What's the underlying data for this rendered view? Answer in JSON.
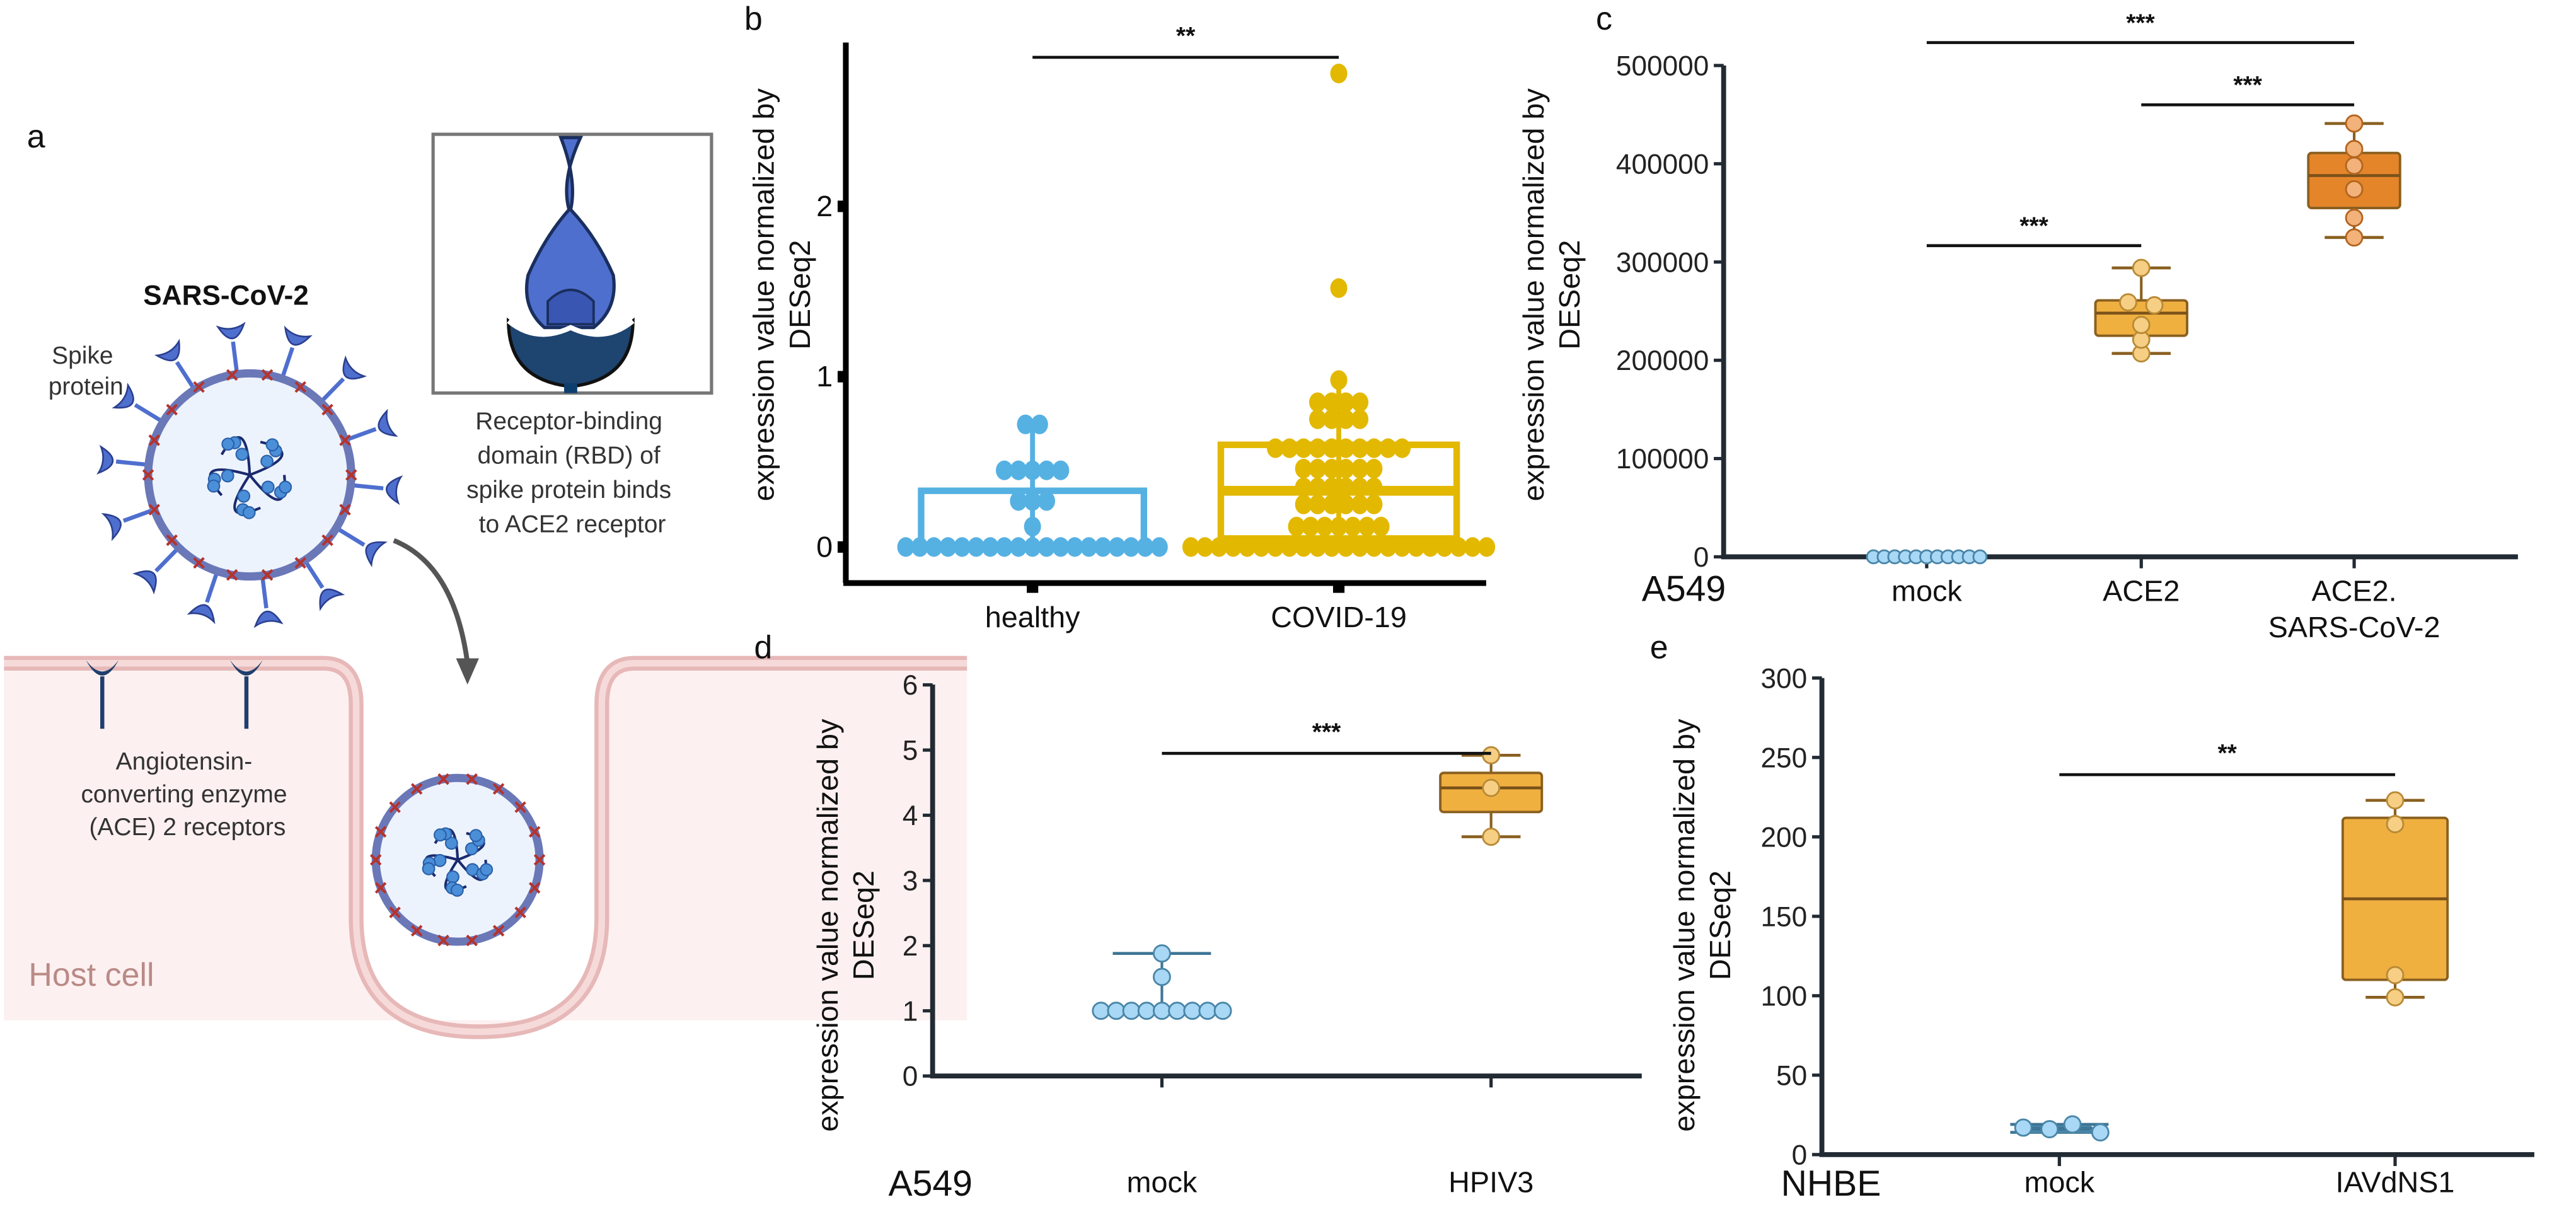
{
  "figure": {
    "panel_letters": [
      "a",
      "b",
      "c",
      "d",
      "e"
    ],
    "colors": {
      "healthy_blue": "#56b1e3",
      "covid_gold": "#e3b800",
      "mock_light_blue": "#a8d8f5",
      "mock_outline": "#4a86a8",
      "mock_dark_blue": "#3d7595",
      "ace2_orange": "#f0b040",
      "sars_orange": "#e5852a",
      "box_outline": "#8a6020",
      "point_fill": "#f6cf85",
      "axis_dark": "#222a33",
      "host_cell_fill": "#fdf0f0",
      "host_membrane": "#e7b8b8",
      "host_text": "#b98a86",
      "virus_blue": "#4f6fcf",
      "virus_dark": "#1e3f6e"
    }
  },
  "panel_a": {
    "letter": "a",
    "virus_title": "SARS-CoV-2",
    "spike_label": [
      "Spike",
      "protein"
    ],
    "rbd_caption": [
      "Receptor-binding",
      "domain (RBD) of",
      "spike protein binds",
      "to ACE2 receptor"
    ],
    "ace2_caption": [
      "Angiotensin-",
      "converting enzyme",
      "(ACE) 2 receptors"
    ],
    "host_cell_label": "Host cell"
  },
  "chart_data": [
    {
      "id": "b",
      "type": "box",
      "panel_letter": "b",
      "title": "",
      "xlabel": "",
      "ylabel": [
        "expression value normalized by",
        "DESeq2"
      ],
      "ylim": [
        -0.2,
        3.0
      ],
      "yticks": [
        0,
        1,
        2
      ],
      "ytick_labels": [
        "0",
        "1",
        "2"
      ],
      "cell_line": "",
      "categories": [
        "healthy",
        "COVID-19"
      ],
      "series": [
        {
          "name": "healthy",
          "color": "#56b1e3",
          "box": {
            "whisker_low": 0,
            "q1": 0,
            "median": 0,
            "q3": 0.33,
            "whisker_high": 0.72
          },
          "points": [
            0,
            0,
            0,
            0,
            0,
            0,
            0,
            0,
            0,
            0,
            0,
            0,
            0,
            0,
            0,
            0,
            0,
            0,
            0,
            0.12,
            0.27,
            0.27,
            0.27,
            0.45,
            0.45,
            0.45,
            0.45,
            0.45,
            0.72,
            0.72
          ]
        },
        {
          "name": "COVID-19",
          "color": "#e3b800",
          "box": {
            "whisker_low": 0,
            "q1": 0.05,
            "median": 0.33,
            "q3": 0.6,
            "whisker_high": 0.98
          },
          "points": [
            0,
            0,
            0,
            0,
            0,
            0,
            0,
            0,
            0,
            0,
            0,
            0,
            0,
            0,
            0,
            0,
            0,
            0,
            0,
            0,
            0,
            0,
            0.12,
            0.12,
            0.12,
            0.12,
            0.12,
            0.12,
            0.12,
            0.25,
            0.25,
            0.25,
            0.25,
            0.25,
            0.25,
            0.35,
            0.35,
            0.35,
            0.35,
            0.35,
            0.35,
            0.46,
            0.46,
            0.46,
            0.46,
            0.46,
            0.46,
            0.58,
            0.58,
            0.58,
            0.58,
            0.58,
            0.58,
            0.58,
            0.58,
            0.58,
            0.58,
            0.75,
            0.75,
            0.75,
            0.75,
            0.85,
            0.85,
            0.85,
            0.85,
            0.98,
            1.52,
            2.78
          ]
        }
      ],
      "significance": [
        {
          "from": "healthy",
          "to": "COVID-19",
          "label": "**"
        }
      ]
    },
    {
      "id": "c",
      "type": "box",
      "panel_letter": "c",
      "title": "",
      "xlabel": "",
      "ylabel": [
        "expression value normalized by",
        "DESeq2"
      ],
      "ylim": [
        0,
        500000
      ],
      "yticks": [
        0,
        100000,
        200000,
        300000,
        400000,
        500000
      ],
      "ytick_labels": [
        "0",
        "100000",
        "200000",
        "300000",
        "400000",
        "500000"
      ],
      "cell_line": "A549",
      "categories": [
        "mock",
        "ACE2",
        "ACE2.|SARS-CoV-2"
      ],
      "series": [
        {
          "name": "mock",
          "color": "#a8d8f5",
          "box": {
            "whisker_low": 0,
            "q1": 0,
            "median": 0,
            "q3": 0,
            "whisker_high": 0
          },
          "points": [
            0,
            0,
            0,
            0,
            0,
            0,
            0,
            0,
            0,
            0,
            0
          ]
        },
        {
          "name": "ACE2",
          "color": "#f0b040",
          "box": {
            "whisker_low": 207000,
            "q1": 225000,
            "median": 248000,
            "q3": 261000,
            "whisker_high": 294000
          },
          "points": [
            294000,
            259000,
            256000,
            236000,
            221000,
            207000
          ]
        },
        {
          "name": "ACE2.SARS-CoV-2",
          "color": "#e5852a",
          "box": {
            "whisker_low": 325000,
            "q1": 355000,
            "median": 388000,
            "q3": 411000,
            "whisker_high": 441000
          },
          "points": [
            441000,
            415000,
            398000,
            374000,
            345000,
            325000
          ]
        }
      ],
      "significance": [
        {
          "from": "mock",
          "to": "ACE2.SARS-CoV-2",
          "label": "***"
        },
        {
          "from": "ACE2",
          "to": "ACE2.SARS-CoV-2",
          "label": "***"
        },
        {
          "from": "mock",
          "to": "ACE2",
          "label": "***"
        }
      ]
    },
    {
      "id": "d",
      "type": "box",
      "panel_letter": "d",
      "title": "",
      "xlabel": "",
      "ylabel": [
        "expression value normalized by",
        "DESeq2"
      ],
      "ylim": [
        0,
        6
      ],
      "yticks": [
        0,
        1,
        2,
        3,
        4,
        5,
        6
      ],
      "ytick_labels": [
        "0",
        "1",
        "2",
        "3",
        "4",
        "5",
        "6"
      ],
      "cell_line": "A549",
      "categories": [
        "mock",
        "HPIV3"
      ],
      "series": [
        {
          "name": "mock",
          "color": "#a8d8f5",
          "box": {
            "whisker_low": 1.0,
            "q1": 1.0,
            "median": 1.0,
            "q3": 1.0,
            "whisker_high": 1.88
          },
          "points": [
            1,
            1,
            1,
            1,
            1,
            1,
            1,
            1,
            1,
            1.52,
            1.88
          ]
        },
        {
          "name": "HPIV3",
          "color": "#f0b040",
          "box": {
            "whisker_low": 3.67,
            "q1": 4.05,
            "median": 4.42,
            "q3": 4.65,
            "whisker_high": 4.92
          },
          "points": [
            4.92,
            4.42,
            3.67
          ]
        }
      ],
      "significance": [
        {
          "from": "mock",
          "to": "HPIV3",
          "label": "***"
        }
      ]
    },
    {
      "id": "e",
      "type": "box",
      "panel_letter": "e",
      "title": "",
      "xlabel": "",
      "ylabel": [
        "expression value normalized by",
        "DESeq2"
      ],
      "ylim": [
        0,
        300
      ],
      "yticks": [
        0,
        50,
        100,
        150,
        200,
        250,
        300
      ],
      "ytick_labels": [
        "0",
        "50",
        "100",
        "150",
        "200",
        "250",
        "300"
      ],
      "cell_line": "NHBE",
      "categories": [
        "mock",
        "IAVdNS1"
      ],
      "series": [
        {
          "name": "mock",
          "color": "#a8d8f5",
          "box": {
            "whisker_low": 14,
            "q1": 15.5,
            "median": 16.5,
            "q3": 17.5,
            "whisker_high": 19
          },
          "points": [
            17,
            16,
            19,
            14
          ]
        },
        {
          "name": "IAVdNS1",
          "color": "#f0b040",
          "box": {
            "whisker_low": 99,
            "q1": 110,
            "median": 161,
            "q3": 212,
            "whisker_high": 223
          },
          "points": [
            223,
            208,
            113,
            99
          ]
        }
      ],
      "significance": [
        {
          "from": "mock",
          "to": "IAVdNS1",
          "label": "**"
        }
      ]
    }
  ]
}
